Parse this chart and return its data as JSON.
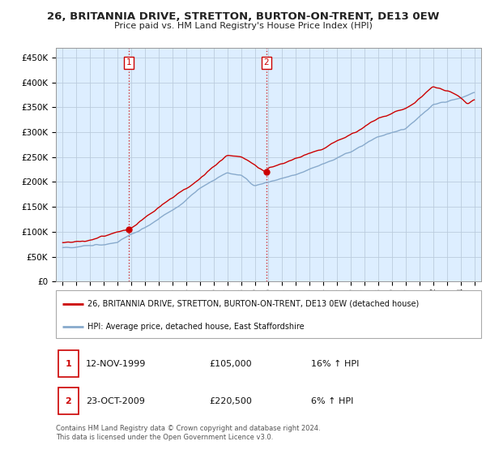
{
  "title": "26, BRITANNIA DRIVE, STRETTON, BURTON-ON-TRENT, DE13 0EW",
  "subtitle": "Price paid vs. HM Land Registry's House Price Index (HPI)",
  "ylim": [
    0,
    470000
  ],
  "yticks": [
    0,
    50000,
    100000,
    150000,
    200000,
    250000,
    300000,
    350000,
    400000,
    450000
  ],
  "ytick_labels": [
    "£0",
    "£50K",
    "£100K",
    "£150K",
    "£200K",
    "£250K",
    "£300K",
    "£350K",
    "£400K",
    "£450K"
  ],
  "purchase1_date": "12-NOV-1999",
  "purchase1_price": 105000,
  "purchase1_hpi": "16% ↑ HPI",
  "purchase2_date": "23-OCT-2009",
  "purchase2_price": 220500,
  "purchase2_hpi": "6% ↑ HPI",
  "legend_line1": "26, BRITANNIA DRIVE, STRETTON, BURTON-ON-TRENT, DE13 0EW (detached house)",
  "legend_line2": "HPI: Average price, detached house, East Staffordshire",
  "footer": "Contains HM Land Registry data © Crown copyright and database right 2024.\nThis data is licensed under the Open Government Licence v3.0.",
  "house_color": "#cc0000",
  "hpi_color": "#88aacc",
  "background_color": "#ddeeff",
  "fig_bg": "#f0f0f0",
  "grid_color": "#bbccdd"
}
